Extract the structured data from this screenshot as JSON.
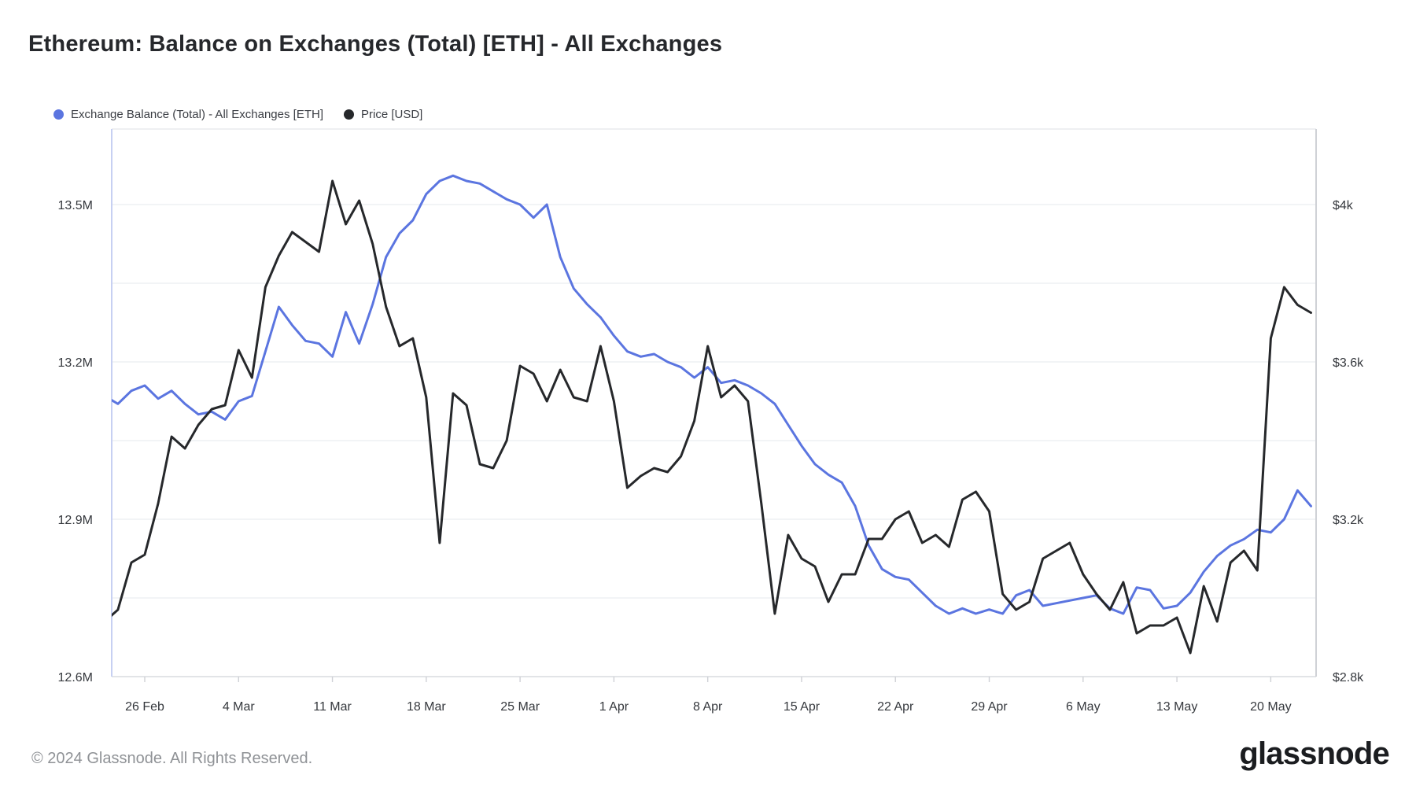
{
  "page": {
    "title": "Ethereum: Balance on Exchanges (Total) [ETH] - All Exchanges"
  },
  "legend": {
    "items": [
      {
        "label": "Exchange Balance (Total) - All Exchanges [ETH]",
        "color": "#5b75e0"
      },
      {
        "label": "Price [USD]",
        "color": "#26282b"
      }
    ]
  },
  "chart_data": {
    "type": "line",
    "title": "Ethereum: Balance on Exchanges (Total) [ETH] - All Exchanges",
    "x_start": "2024-02-23",
    "x_interval": "1d",
    "x_ticks": [
      {
        "label": "26 Feb",
        "date": "2024-02-26"
      },
      {
        "label": "4 Mar",
        "date": "2024-03-04"
      },
      {
        "label": "11 Mar",
        "date": "2024-03-11"
      },
      {
        "label": "18 Mar",
        "date": "2024-03-18"
      },
      {
        "label": "25 Mar",
        "date": "2024-03-25"
      },
      {
        "label": "1 Apr",
        "date": "2024-04-01"
      },
      {
        "label": "8 Apr",
        "date": "2024-04-08"
      },
      {
        "label": "15 Apr",
        "date": "2024-04-15"
      },
      {
        "label": "22 Apr",
        "date": "2024-04-22"
      },
      {
        "label": "29 Apr",
        "date": "2024-04-29"
      },
      {
        "label": "6 May",
        "date": "2024-05-06"
      },
      {
        "label": "13 May",
        "date": "2024-05-13"
      },
      {
        "label": "20 May",
        "date": "2024-05-20"
      }
    ],
    "y_left": {
      "unit": "M ETH",
      "ticks": [
        {
          "label": "13.5M",
          "value": 13.5
        },
        {
          "label": "",
          "value": 13.35
        },
        {
          "label": "13.2M",
          "value": 13.2
        },
        {
          "label": "",
          "value": 13.05
        },
        {
          "label": "12.9M",
          "value": 12.9
        },
        {
          "label": "",
          "value": 12.75
        },
        {
          "label": "12.6M",
          "value": 12.6
        }
      ]
    },
    "y_right": {
      "unit": "USD",
      "ticks": [
        {
          "label": "$4k",
          "value": 4000
        },
        {
          "label": "",
          "value": 3800
        },
        {
          "label": "$3.6k",
          "value": 3600
        },
        {
          "label": "",
          "value": 3400
        },
        {
          "label": "$3.2k",
          "value": 3200
        },
        {
          "label": "",
          "value": 3000
        },
        {
          "label": "$2.8k",
          "value": 2800
        }
      ]
    },
    "grid": true,
    "legend_position": "top-left",
    "series": [
      {
        "name": "Exchange Balance (Total) - All Exchanges [ETH]",
        "axis": "left",
        "color": "#5b75e0",
        "width": 3,
        "values": [
          13.135,
          13.12,
          13.145,
          13.155,
          13.13,
          13.145,
          13.12,
          13.1,
          13.105,
          13.09,
          13.125,
          13.135,
          13.22,
          13.305,
          13.27,
          13.24,
          13.235,
          13.21,
          13.295,
          13.235,
          13.31,
          13.4,
          13.445,
          13.47,
          13.52,
          13.545,
          13.555,
          13.545,
          13.54,
          13.525,
          13.51,
          13.5,
          13.475,
          13.5,
          13.4,
          13.34,
          13.31,
          13.285,
          13.25,
          13.22,
          13.21,
          13.215,
          13.2,
          13.19,
          13.17,
          13.19,
          13.16,
          13.165,
          13.155,
          13.14,
          13.12,
          13.08,
          13.04,
          13.005,
          12.985,
          12.97,
          12.925,
          12.85,
          12.805,
          12.79,
          12.785,
          12.76,
          12.735,
          12.72,
          12.73,
          12.72,
          12.728,
          12.72,
          12.755,
          12.765,
          12.735,
          12.74,
          12.745,
          12.75,
          12.755,
          12.73,
          12.72,
          12.77,
          12.765,
          12.73,
          12.735,
          12.76,
          12.8,
          12.83,
          12.85,
          12.862,
          12.88,
          12.875,
          12.9,
          12.955,
          12.925
        ]
      },
      {
        "name": "Price [USD]",
        "axis": "right",
        "color": "#26282b",
        "width": 3,
        "values": [
          2940,
          2970,
          3090,
          3110,
          3240,
          3410,
          3380,
          3440,
          3480,
          3490,
          3630,
          3560,
          3790,
          3870,
          3930,
          3905,
          3880,
          4060,
          3950,
          4010,
          3900,
          3740,
          3640,
          3660,
          3510,
          3140,
          3520,
          3490,
          3340,
          3330,
          3400,
          3590,
          3570,
          3500,
          3580,
          3510,
          3500,
          3640,
          3500,
          3280,
          3310,
          3330,
          3320,
          3360,
          3450,
          3640,
          3510,
          3540,
          3500,
          3240,
          2960,
          3160,
          3100,
          3080,
          2990,
          3060,
          3060,
          3150,
          3150,
          3200,
          3220,
          3140,
          3160,
          3130,
          3250,
          3270,
          3220,
          3010,
          2970,
          2990,
          3100,
          3120,
          3140,
          3060,
          3010,
          2970,
          3040,
          2910,
          2930,
          2930,
          2950,
          2860,
          3030,
          2940,
          3090,
          3120,
          3070,
          3660,
          3790,
          3745,
          3725
        ]
      }
    ]
  },
  "footer": {
    "copyright": "© 2024 Glassnode. All Rights Reserved.",
    "brand": "glassnode"
  }
}
